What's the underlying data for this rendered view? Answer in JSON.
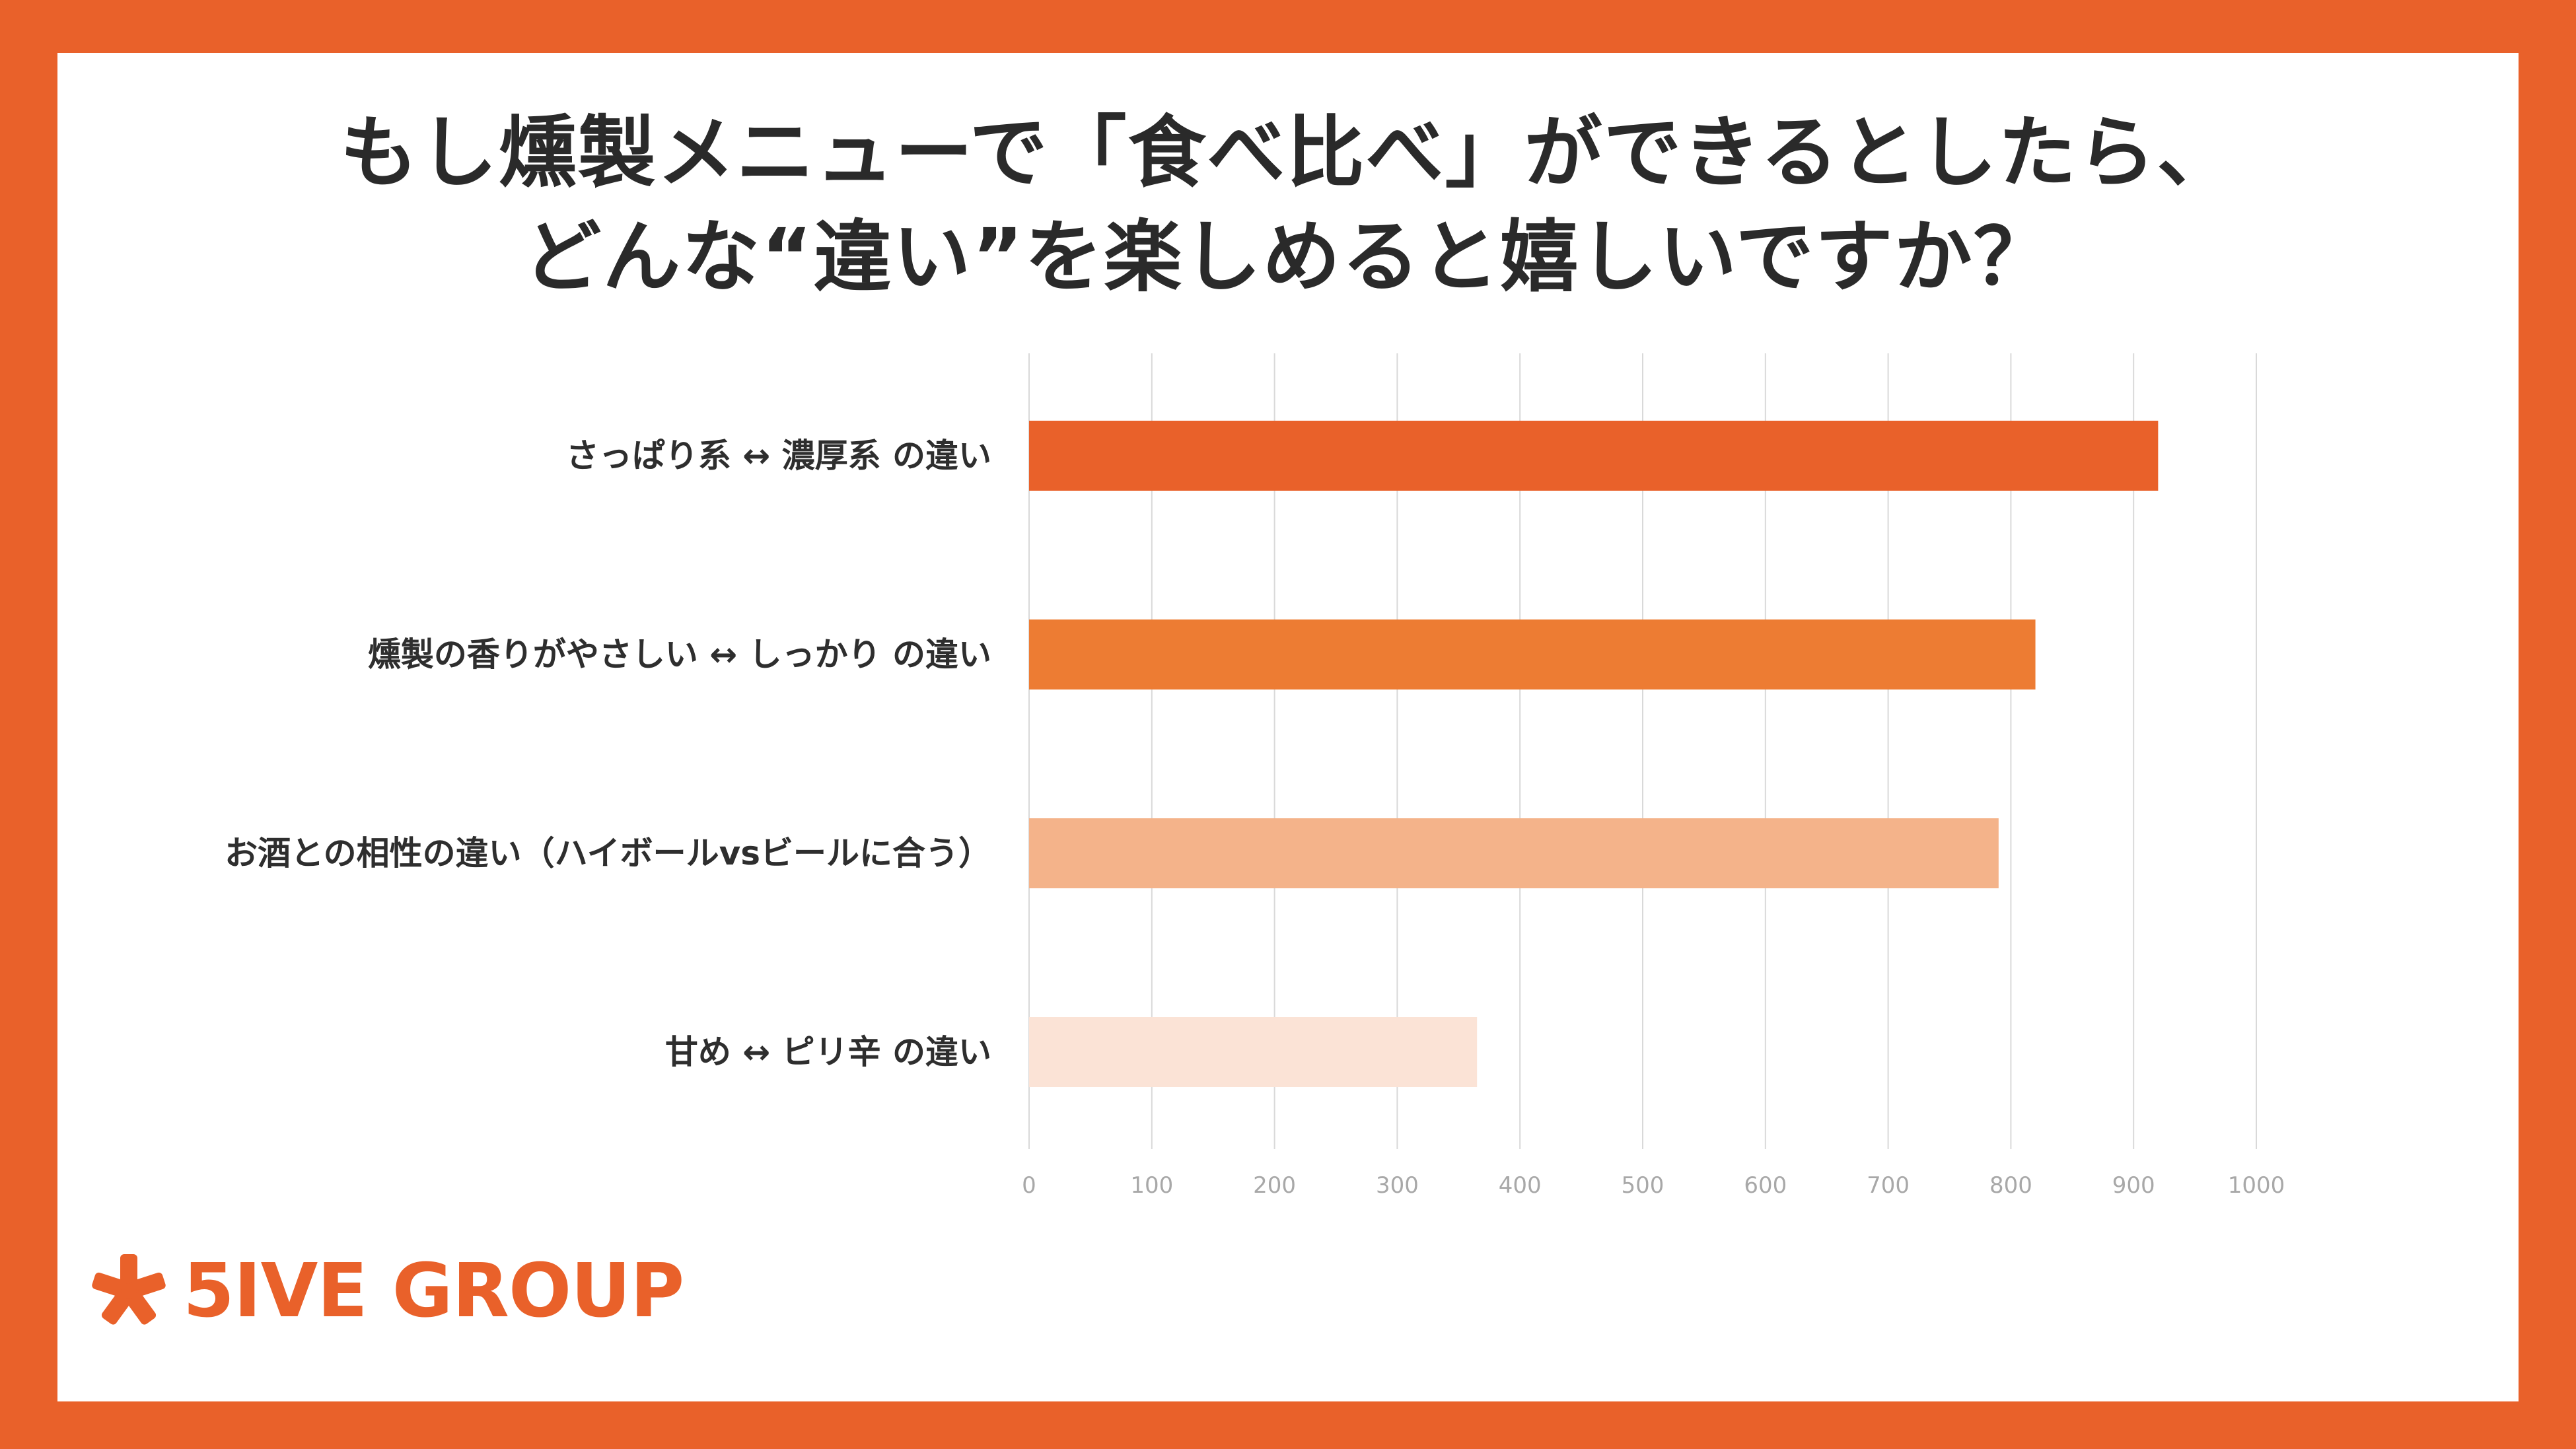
{
  "chart_data": {
    "type": "bar",
    "orientation": "horizontal",
    "title_lines": [
      "もし燻製メニューで「食べ比べ」ができるとしたら、",
      "どんな“違い”を楽しめると嬉しいですか？"
    ],
    "categories": [
      "さっぱり系 ↔ 濃厚系 の違い",
      "燻製の香りがやさしい ↔ しっかり の違い",
      "お酒との相性の違い（ハイボールvsビールに合う）",
      "甘め ↔ ピリ辛 の違い"
    ],
    "values": [
      920,
      820,
      790,
      365
    ],
    "bar_colors": [
      "#E9612A",
      "#ED7C33",
      "#F4B38A",
      "#FBE3D6"
    ],
    "xlim": [
      0,
      1000
    ],
    "xticks": [
      0,
      100,
      200,
      300,
      400,
      500,
      600,
      700,
      800,
      900,
      1000
    ],
    "xtick_labels": [
      "0",
      "100",
      "200",
      "300",
      "400",
      "500",
      "600",
      "700",
      "800",
      "900",
      "1000"
    ],
    "grid": "vertical",
    "legend": "none"
  },
  "branding": {
    "logo_text": "5IVE GROUP",
    "logo_icon": "asterisk-star-icon",
    "accent_color": "#E9612A"
  }
}
